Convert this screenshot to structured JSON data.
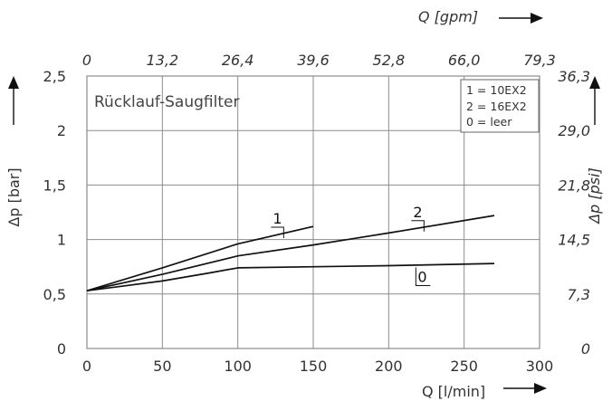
{
  "chart_data": {
    "type": "line",
    "title": "Rücklauf-Saugfilter",
    "xlabel": "Q [l/min]",
    "ylabel": "Δp [bar]",
    "x2label": "Q [gpm]",
    "y2label": "Δp [psi]",
    "xlim": [
      0,
      300
    ],
    "ylim": [
      0,
      2.5
    ],
    "x_ticks": [
      "0",
      "50",
      "100",
      "150",
      "200",
      "250",
      "300"
    ],
    "y_ticks": [
      "0",
      "0,5",
      "1",
      "1,5",
      "2",
      "2,5"
    ],
    "x2_ticks": [
      "0",
      "13,2",
      "26,4",
      "39,6",
      "52,8",
      "66,0",
      "79,3"
    ],
    "y2_ticks": [
      "0",
      "7,3",
      "14,5",
      "21,8",
      "29,0",
      "36,3"
    ],
    "grid": true,
    "legend": {
      "position": "top-right",
      "entries": [
        "1 = 10EX2",
        "2 = 16EX2",
        "0 = leer"
      ]
    },
    "series": [
      {
        "label": "1",
        "x": [
          0,
          50,
          100,
          150
        ],
        "y": [
          0.53,
          0.74,
          0.96,
          1.12
        ]
      },
      {
        "label": "2",
        "x": [
          0,
          50,
          100,
          150,
          200,
          270
        ],
        "y": [
          0.53,
          0.68,
          0.85,
          0.95,
          1.06,
          1.22
        ]
      },
      {
        "label": "0",
        "x": [
          0,
          50,
          80,
          100,
          150,
          200,
          270
        ],
        "y": [
          0.53,
          0.62,
          0.69,
          0.74,
          0.75,
          0.76,
          0.78
        ]
      }
    ]
  },
  "colors": {
    "line": "#111111",
    "grid": "#8c8c8c",
    "text": "#333333"
  }
}
